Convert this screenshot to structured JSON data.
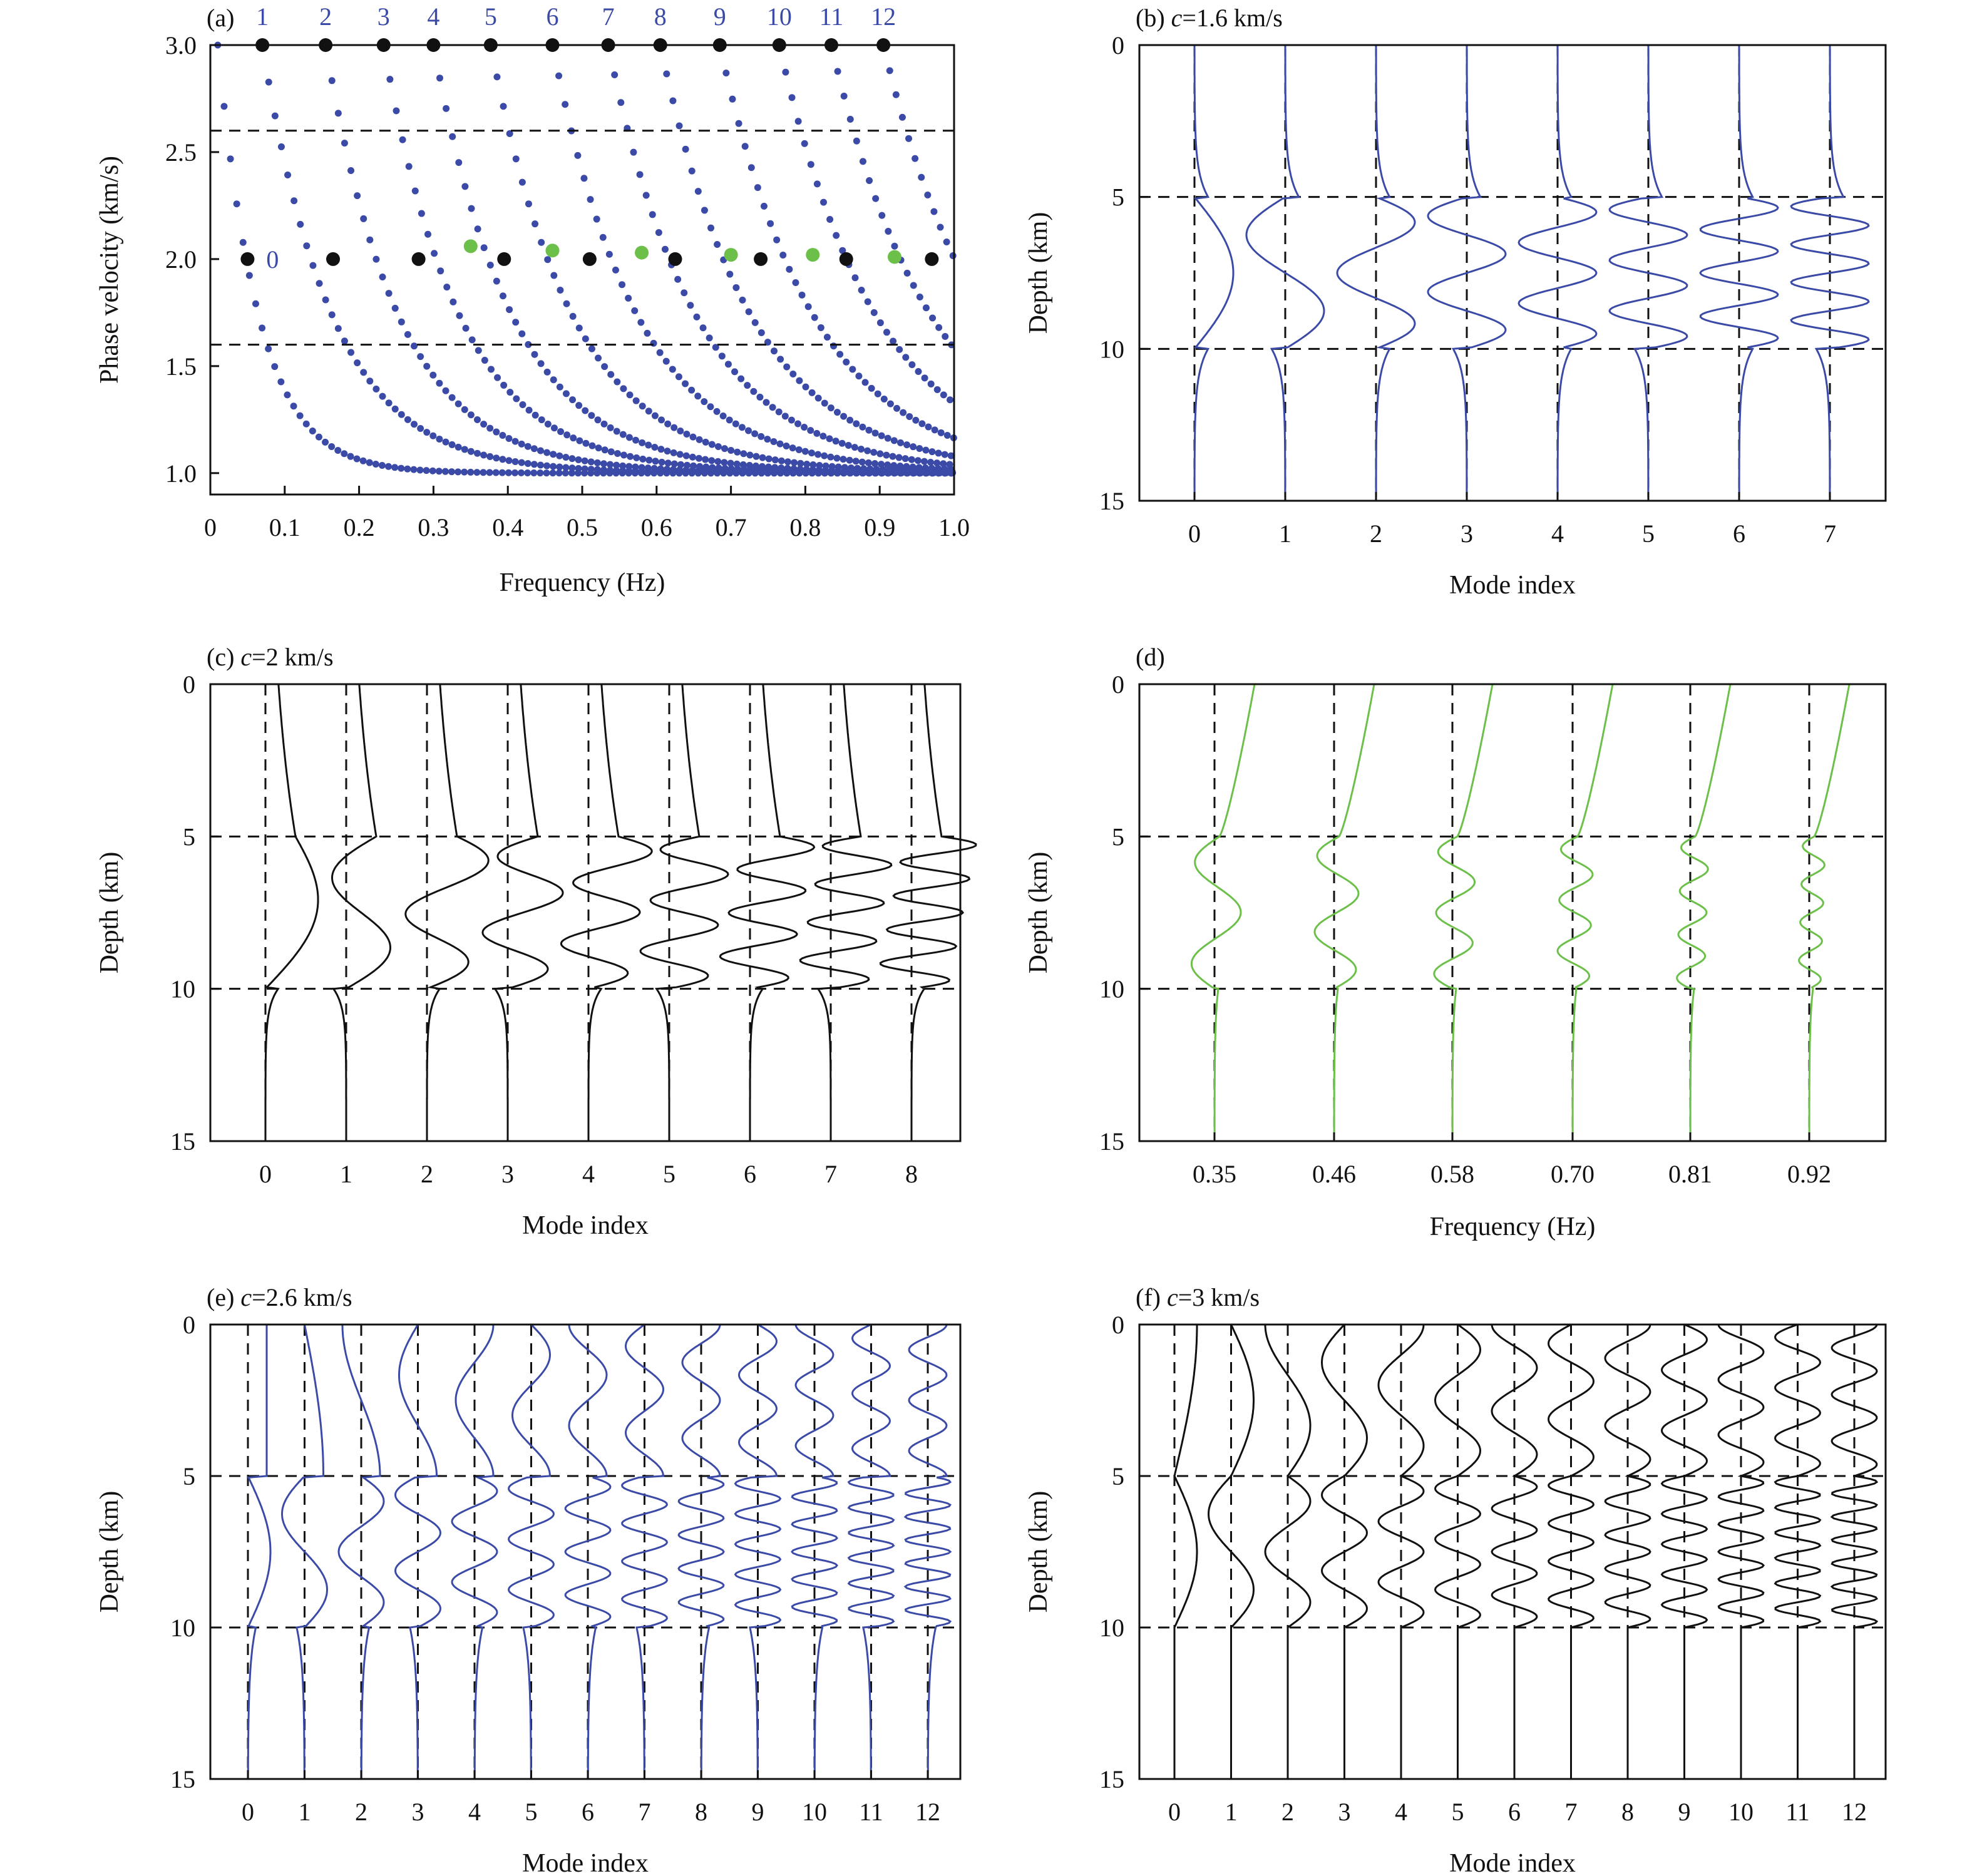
{
  "colors": {
    "blue": "#3a4aa6",
    "green": "#6cc04a",
    "black": "#111111"
  },
  "chart_data": [
    {
      "panel": "a",
      "type": "scatter",
      "label": "(a)",
      "xlabel": "Frequency (Hz)",
      "ylabel": "Phase velocity (km/s)",
      "xlim": [
        0,
        1.0
      ],
      "ylim": [
        0.9,
        3.0
      ],
      "xticks": [
        "0",
        "0.1",
        "0.2",
        "0.3",
        "0.4",
        "0.5",
        "0.6",
        "0.7",
        "0.8",
        "0.9",
        "1.0"
      ],
      "yticks": [
        "1.0",
        "1.5",
        "2.0",
        "2.5",
        "3.0"
      ],
      "mode_labels": [
        "0",
        "1",
        "2",
        "3",
        "4",
        "5",
        "6",
        "7",
        "8",
        "9",
        "10",
        "11",
        "12"
      ],
      "reference_lines_y": [
        2.6,
        1.6
      ],
      "curve_onsets": [
        0.01,
        0.07,
        0.155,
        0.233,
        0.3,
        0.377,
        0.46,
        0.535,
        0.605,
        0.685,
        0.765,
        0.835,
        0.905
      ],
      "black_points": [
        [
          0.07,
          3.0
        ],
        [
          0.155,
          3.0
        ],
        [
          0.233,
          3.0
        ],
        [
          0.3,
          3.0
        ],
        [
          0.377,
          3.0
        ],
        [
          0.46,
          3.0
        ],
        [
          0.535,
          3.0
        ],
        [
          0.605,
          3.0
        ],
        [
          0.685,
          3.0
        ],
        [
          0.765,
          3.0
        ],
        [
          0.835,
          3.0
        ],
        [
          0.905,
          3.0
        ],
        [
          0.05,
          2.0
        ],
        [
          0.165,
          2.0
        ],
        [
          0.28,
          2.0
        ],
        [
          0.395,
          2.0
        ],
        [
          0.51,
          2.0
        ],
        [
          0.625,
          2.0
        ],
        [
          0.74,
          2.0
        ],
        [
          0.855,
          2.0
        ],
        [
          0.97,
          2.0
        ]
      ],
      "green_points": [
        [
          0.35,
          2.06
        ],
        [
          0.46,
          2.04
        ],
        [
          0.58,
          2.03
        ],
        [
          0.7,
          2.02
        ],
        [
          0.81,
          2.02
        ],
        [
          0.92,
          2.01
        ]
      ]
    },
    {
      "panel": "b",
      "type": "line",
      "label": "(b)",
      "c_value": "=1.6 km/s",
      "xlabel": "Mode index",
      "ylabel": "Depth (km)",
      "xticks": [
        "0",
        "1",
        "2",
        "3",
        "4",
        "5",
        "6",
        "7"
      ],
      "yticks": [
        "0",
        "5",
        "10",
        "15"
      ],
      "ylim": [
        0,
        15
      ],
      "layer_boundaries_km": [
        5,
        10
      ],
      "modes": 8,
      "color": "blue"
    },
    {
      "panel": "c",
      "type": "line",
      "label": "(c)",
      "c_value": "=2 km/s",
      "xlabel": "Mode index",
      "ylabel": "Depth (km)",
      "xticks": [
        "0",
        "1",
        "2",
        "3",
        "4",
        "5",
        "6",
        "7",
        "8"
      ],
      "yticks": [
        "0",
        "5",
        "10",
        "15"
      ],
      "ylim": [
        0,
        15
      ],
      "layer_boundaries_km": [
        5,
        10
      ],
      "modes": 9,
      "color": "black"
    },
    {
      "panel": "d",
      "type": "line",
      "label": "(d)",
      "xlabel": "Frequency (Hz)",
      "ylabel": "Depth (km)",
      "xticks": [
        "0.35",
        "0.46",
        "0.58",
        "0.70",
        "0.81",
        "0.92"
      ],
      "yticks": [
        "0",
        "5",
        "10",
        "15"
      ],
      "ylim": [
        0,
        15
      ],
      "layer_boundaries_km": [
        5,
        10
      ],
      "color": "green"
    },
    {
      "panel": "e",
      "type": "line",
      "label": "(e)",
      "c_value": "=2.6 km/s",
      "xlabel": "Mode index",
      "ylabel": "Depth (km)",
      "xticks": [
        "0",
        "1",
        "2",
        "3",
        "4",
        "5",
        "6",
        "7",
        "8",
        "9",
        "10",
        "11",
        "12"
      ],
      "yticks": [
        "0",
        "5",
        "10",
        "15"
      ],
      "ylim": [
        0,
        15
      ],
      "layer_boundaries_km": [
        5,
        10
      ],
      "modes": 13,
      "color": "blue"
    },
    {
      "panel": "f",
      "type": "line",
      "label": "(f)",
      "c_value": "=3 km/s",
      "xlabel": "Mode index",
      "ylabel": "Depth (km)",
      "xticks": [
        "0",
        "1",
        "2",
        "3",
        "4",
        "5",
        "6",
        "7",
        "8",
        "9",
        "10",
        "11",
        "12"
      ],
      "yticks": [
        "0",
        "5",
        "10",
        "15"
      ],
      "ylim": [
        0,
        15
      ],
      "layer_boundaries_km": [
        5,
        10
      ],
      "modes": 13,
      "color": "black"
    }
  ]
}
